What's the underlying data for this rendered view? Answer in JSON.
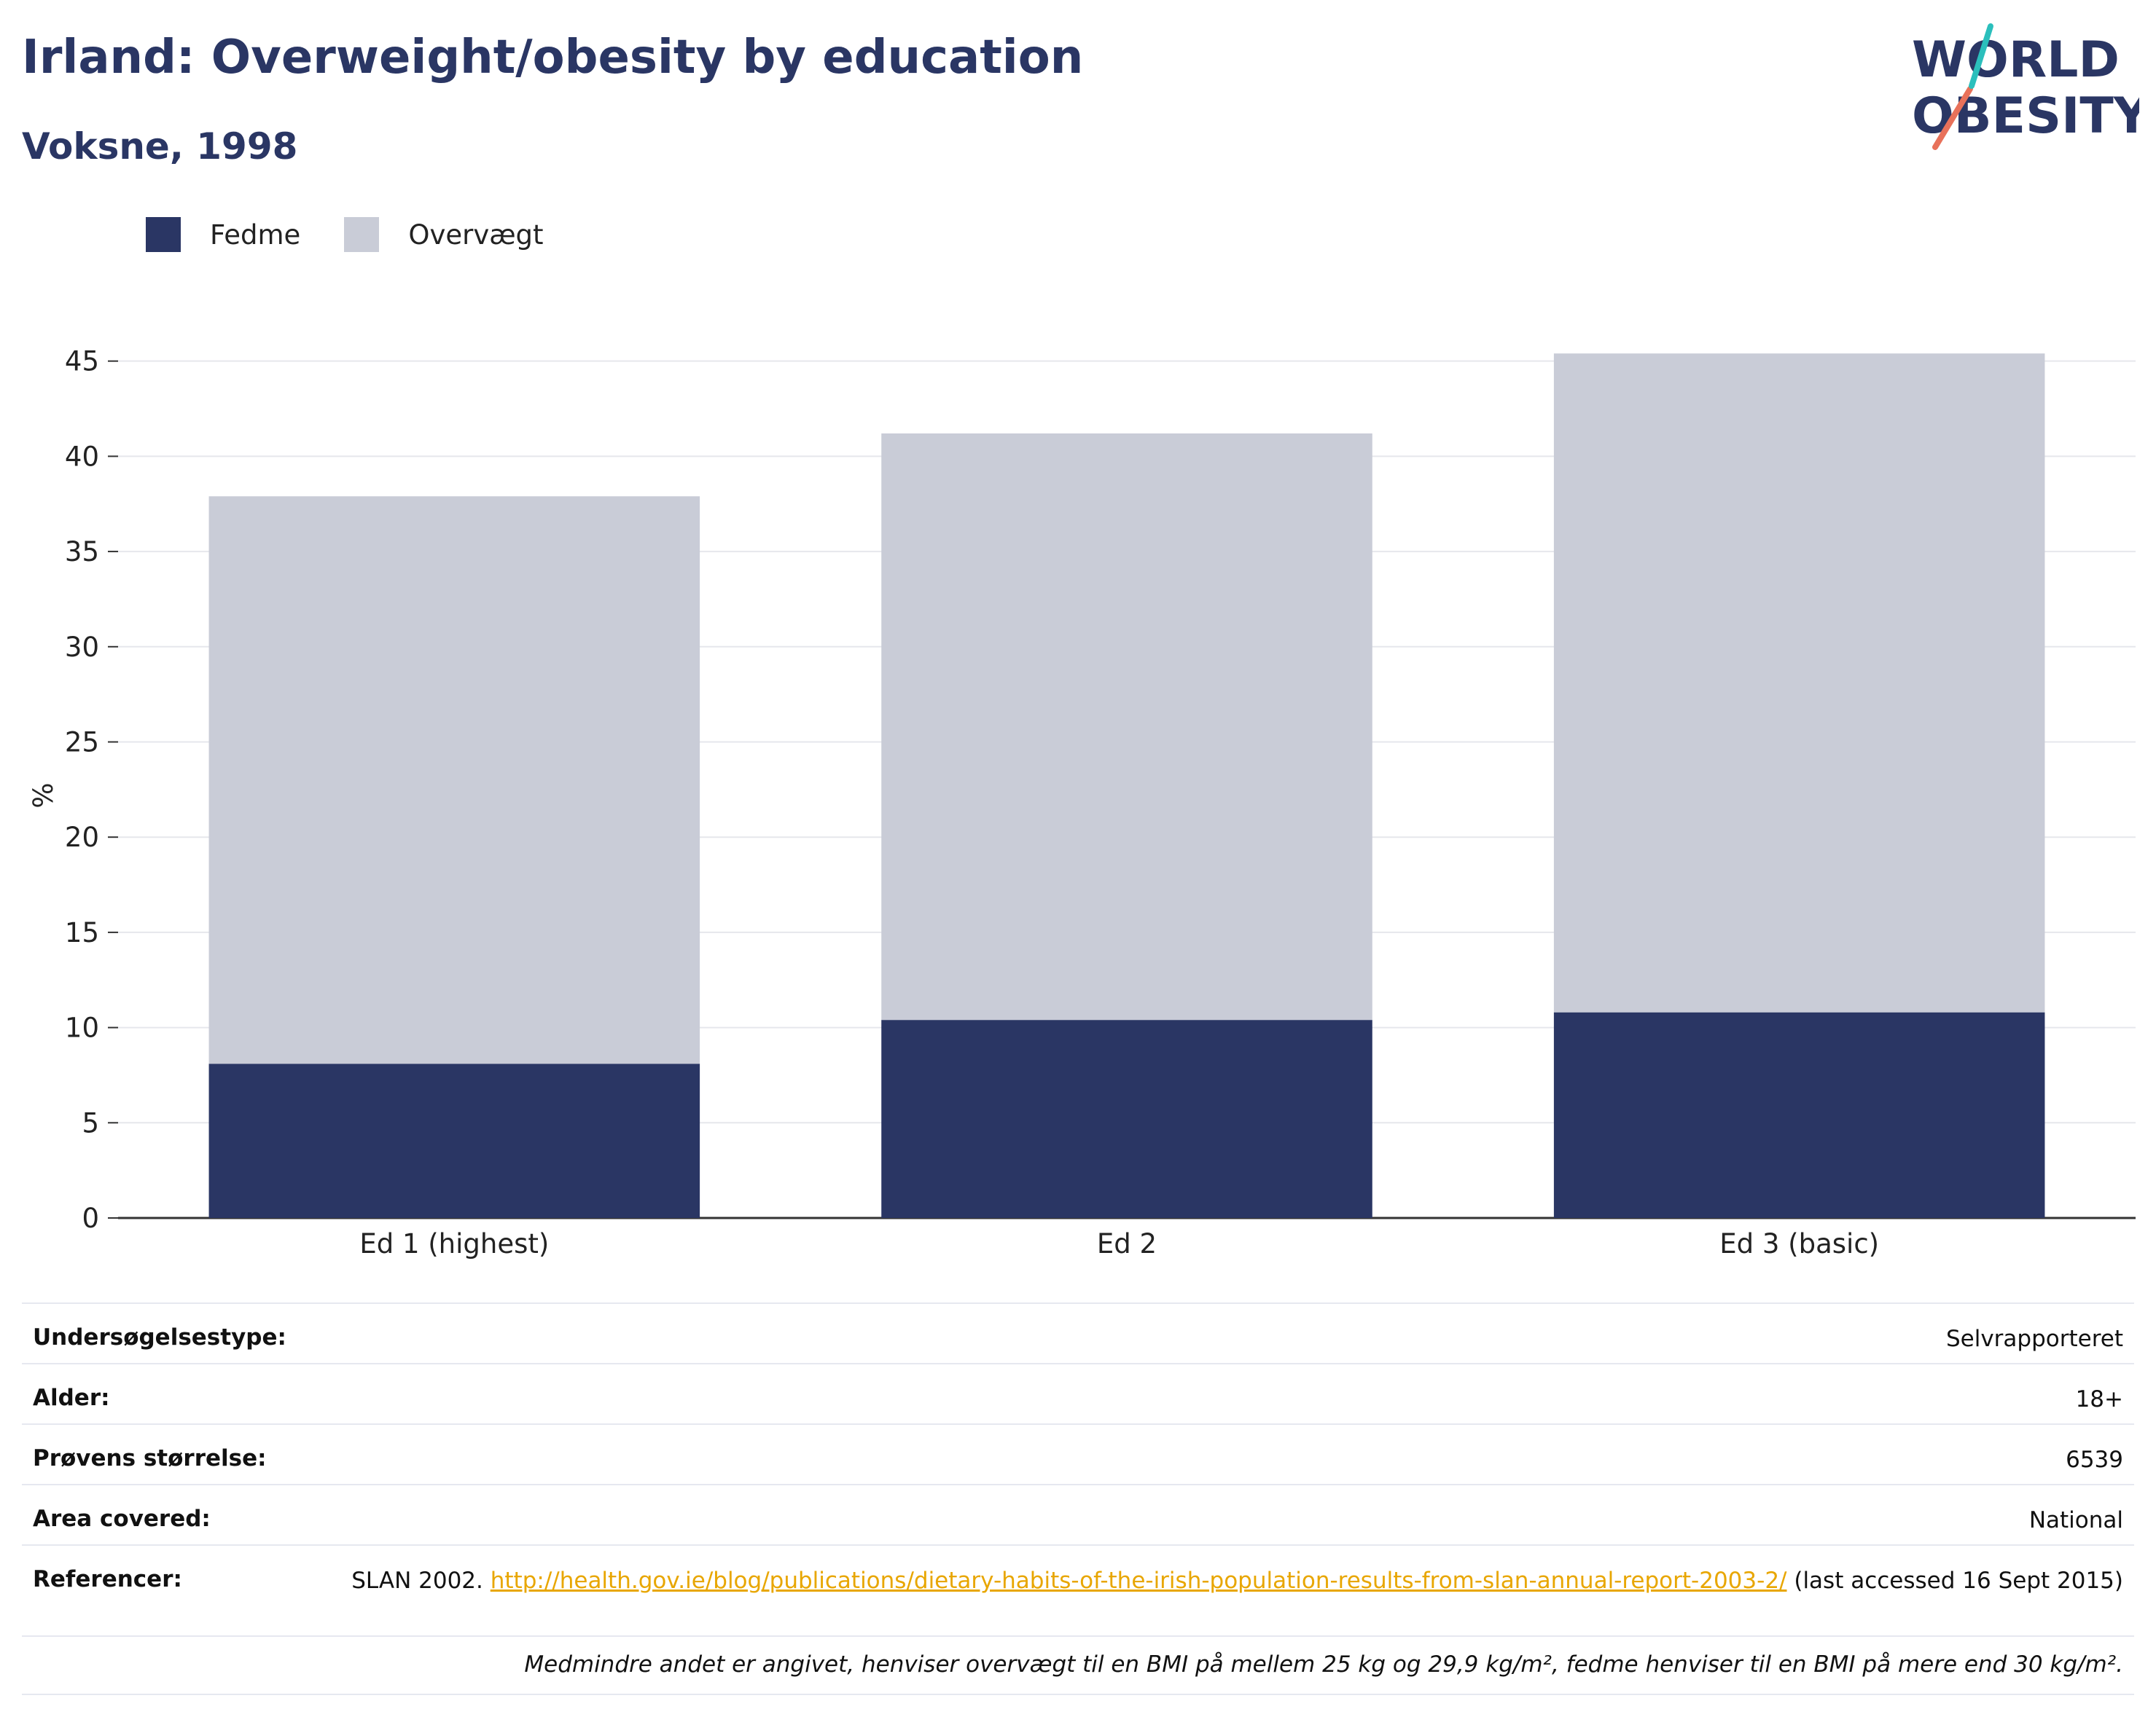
{
  "header": {
    "title": "Irland: Overweight/obesity by education",
    "subtitle": "Voksne, 1998"
  },
  "logo": {
    "line1": "WORLD",
    "line2": "OBESITY"
  },
  "colors": {
    "obesity": "#2a3664",
    "overweight": "#c9ccd7",
    "title": "#2a3664",
    "link": "#e8a600"
  },
  "chart_data": {
    "type": "bar",
    "stacked": true,
    "categories": [
      "Ed 1 (highest)",
      "Ed 2",
      "Ed 3 (basic)"
    ],
    "series": [
      {
        "name": "Fedme",
        "values": [
          8.1,
          10.4,
          10.8
        ]
      },
      {
        "name": "Overvægt",
        "values": [
          29.8,
          30.8,
          34.6
        ]
      }
    ],
    "ylabel": "%",
    "xlabel": "",
    "ylim": [
      0,
      45
    ],
    "yticks": [
      0,
      5,
      10,
      15,
      20,
      25,
      30,
      35,
      40,
      45
    ],
    "grid": true,
    "legend": "top-left"
  },
  "meta": {
    "survey_type_label": "Undersøgelsestype:",
    "survey_type_value": "Selvrapporteret",
    "age_label": "Alder:",
    "age_value": "18+",
    "sample_label": "Prøvens størrelse:",
    "sample_value": "6539",
    "area_label": "Area covered:",
    "area_value": "National",
    "ref_label": "Referencer:",
    "ref_prefix": "SLAN 2002.",
    "ref_link": "http://health.gov.ie/blog/publications/dietary-habits-of-the-irish-population-results-from-slan-annual-report-2003-2/",
    "ref_suffix": "(last accessed 16 Sept 2015)"
  },
  "footnote": "Medmindre andet er angivet, henviser overvægt til en BMI på mellem 25 kg og 29,9 kg/m², fedme henviser til en BMI på mere end 30 kg/m²."
}
